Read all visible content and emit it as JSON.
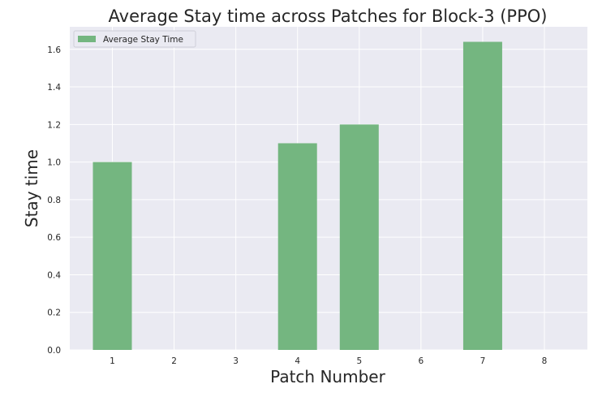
{
  "chart_data": {
    "type": "bar",
    "title": "Average Stay time across Patches for Block-3 (PPO)",
    "xlabel": "Patch Number",
    "ylabel": "Stay time",
    "categories": [
      "1",
      "2",
      "3",
      "4",
      "5",
      "6",
      "7",
      "8"
    ],
    "series": [
      {
        "name": "Average Stay Time",
        "values": [
          1.0,
          0,
          0,
          1.1,
          1.2,
          0,
          1.64,
          0
        ]
      }
    ],
    "ylim": [
      0,
      1.72
    ],
    "yticks": [
      "0.0",
      "0.2",
      "0.4",
      "0.6",
      "0.8",
      "1.0",
      "1.2",
      "1.4",
      "1.6"
    ],
    "grid": true,
    "legend_position": "top-left",
    "colors": {
      "bar": "#74b680",
      "plot_bg": "#eaeaf2",
      "grid": "#ffffff"
    }
  }
}
